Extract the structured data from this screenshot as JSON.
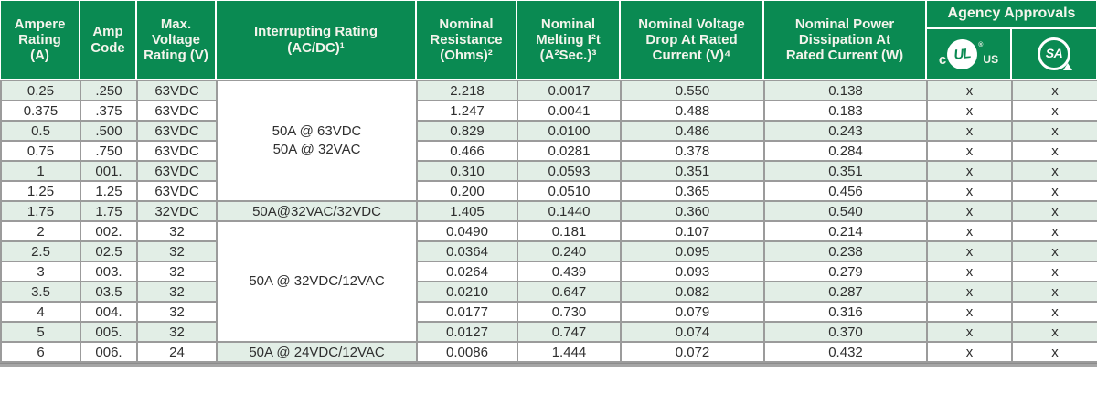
{
  "table": {
    "headers": [
      {
        "key": "ampere-rating",
        "lines": [
          "Ampere",
          "Rating",
          "(A)"
        ]
      },
      {
        "key": "amp-code",
        "lines": [
          "Amp",
          "Code"
        ]
      },
      {
        "key": "max-voltage",
        "lines": [
          "Max.",
          "Voltage",
          "Rating (V)"
        ]
      },
      {
        "key": "interrupting-rating",
        "lines": [
          "Interrupting Rating",
          "(AC/DC)¹"
        ]
      },
      {
        "key": "nominal-resistance",
        "lines": [
          "Nominal",
          "Resistance",
          "(Ohms)²"
        ]
      },
      {
        "key": "nominal-melting",
        "lines": [
          "Nominal",
          "Melting I²t",
          "(A²Sec.)³"
        ]
      },
      {
        "key": "voltage-drop",
        "lines": [
          "Nominal Voltage",
          "Drop At Rated",
          "Current (V)⁴"
        ]
      },
      {
        "key": "power-dissipation",
        "lines": [
          "Nominal Power",
          "Dissipation At",
          "Rated Current (W)"
        ]
      }
    ],
    "agency": {
      "label": "Agency Approvals",
      "ul_prefix": "c",
      "ul_mark": "UL",
      "ul_reg": "®",
      "ul_suffix": "US",
      "csa_mark": "SA"
    },
    "interrupting_groups": [
      {
        "start": 0,
        "end": 5,
        "lines": [
          "50A @ 63VDC",
          "50A @ 32VAC"
        ],
        "shaded": false
      },
      {
        "start": 6,
        "end": 6,
        "lines": [
          "50A@32VAC/32VDC"
        ],
        "shaded": true
      },
      {
        "start": 7,
        "end": 12,
        "lines": [
          "50A @ 32VDC/12VAC"
        ],
        "shaded": false
      },
      {
        "start": 13,
        "end": 13,
        "lines": [
          "50A @ 24VDC/12VAC"
        ],
        "shaded": true
      }
    ],
    "rows": [
      {
        "amp": "0.25",
        "code": ".250",
        "volt": "63VDC",
        "res": "2.218",
        "melt": "0.0017",
        "drop": "0.550",
        "power": "0.138",
        "ul": "x",
        "csa": "x",
        "shaded": true
      },
      {
        "amp": "0.375",
        "code": ".375",
        "volt": "63VDC",
        "res": "1.247",
        "melt": "0.0041",
        "drop": "0.488",
        "power": "0.183",
        "ul": "x",
        "csa": "x",
        "shaded": false
      },
      {
        "amp": "0.5",
        "code": ".500",
        "volt": "63VDC",
        "res": "0.829",
        "melt": "0.0100",
        "drop": "0.486",
        "power": "0.243",
        "ul": "x",
        "csa": "x",
        "shaded": true
      },
      {
        "amp": "0.75",
        "code": ".750",
        "volt": "63VDC",
        "res": "0.466",
        "melt": "0.0281",
        "drop": "0.378",
        "power": "0.284",
        "ul": "x",
        "csa": "x",
        "shaded": false
      },
      {
        "amp": "1",
        "code": "001.",
        "volt": "63VDC",
        "res": "0.310",
        "melt": "0.0593",
        "drop": "0.351",
        "power": "0.351",
        "ul": "x",
        "csa": "x",
        "shaded": true
      },
      {
        "amp": "1.25",
        "code": "1.25",
        "volt": "63VDC",
        "res": "0.200",
        "melt": "0.0510",
        "drop": "0.365",
        "power": "0.456",
        "ul": "x",
        "csa": "x",
        "shaded": false
      },
      {
        "amp": "1.75",
        "code": "1.75",
        "volt": "32VDC",
        "res": "1.405",
        "melt": "0.1440",
        "drop": "0.360",
        "power": "0.540",
        "ul": "x",
        "csa": "x",
        "shaded": true
      },
      {
        "amp": "2",
        "code": "002.",
        "volt": "32",
        "res": "0.0490",
        "melt": "0.181",
        "drop": "0.107",
        "power": "0.214",
        "ul": "x",
        "csa": "x",
        "shaded": false
      },
      {
        "amp": "2.5",
        "code": "02.5",
        "volt": "32",
        "res": "0.0364",
        "melt": "0.240",
        "drop": "0.095",
        "power": "0.238",
        "ul": "x",
        "csa": "x",
        "shaded": true
      },
      {
        "amp": "3",
        "code": "003.",
        "volt": "32",
        "res": "0.0264",
        "melt": "0.439",
        "drop": "0.093",
        "power": "0.279",
        "ul": "x",
        "csa": "x",
        "shaded": false
      },
      {
        "amp": "3.5",
        "code": "03.5",
        "volt": "32",
        "res": "0.0210",
        "melt": "0.647",
        "drop": "0.082",
        "power": "0.287",
        "ul": "x",
        "csa": "x",
        "shaded": true
      },
      {
        "amp": "4",
        "code": "004.",
        "volt": "32",
        "res": "0.0177",
        "melt": "0.730",
        "drop": "0.079",
        "power": "0.316",
        "ul": "x",
        "csa": "x",
        "shaded": false
      },
      {
        "amp": "5",
        "code": "005.",
        "volt": "32",
        "res": "0.0127",
        "melt": "0.747",
        "drop": "0.074",
        "power": "0.370",
        "ul": "x",
        "csa": "x",
        "shaded": true
      },
      {
        "amp": "6",
        "code": "006.",
        "volt": "24",
        "res": "0.0086",
        "melt": "1.444",
        "drop": "0.072",
        "power": "0.432",
        "ul": "x",
        "csa": "x",
        "shaded": false
      }
    ],
    "colors": {
      "header_green": "#0a8a52",
      "row_shade": "#e2eee6",
      "border_gray": "#9b9b9b",
      "text_dark": "#2f2f2f"
    }
  }
}
